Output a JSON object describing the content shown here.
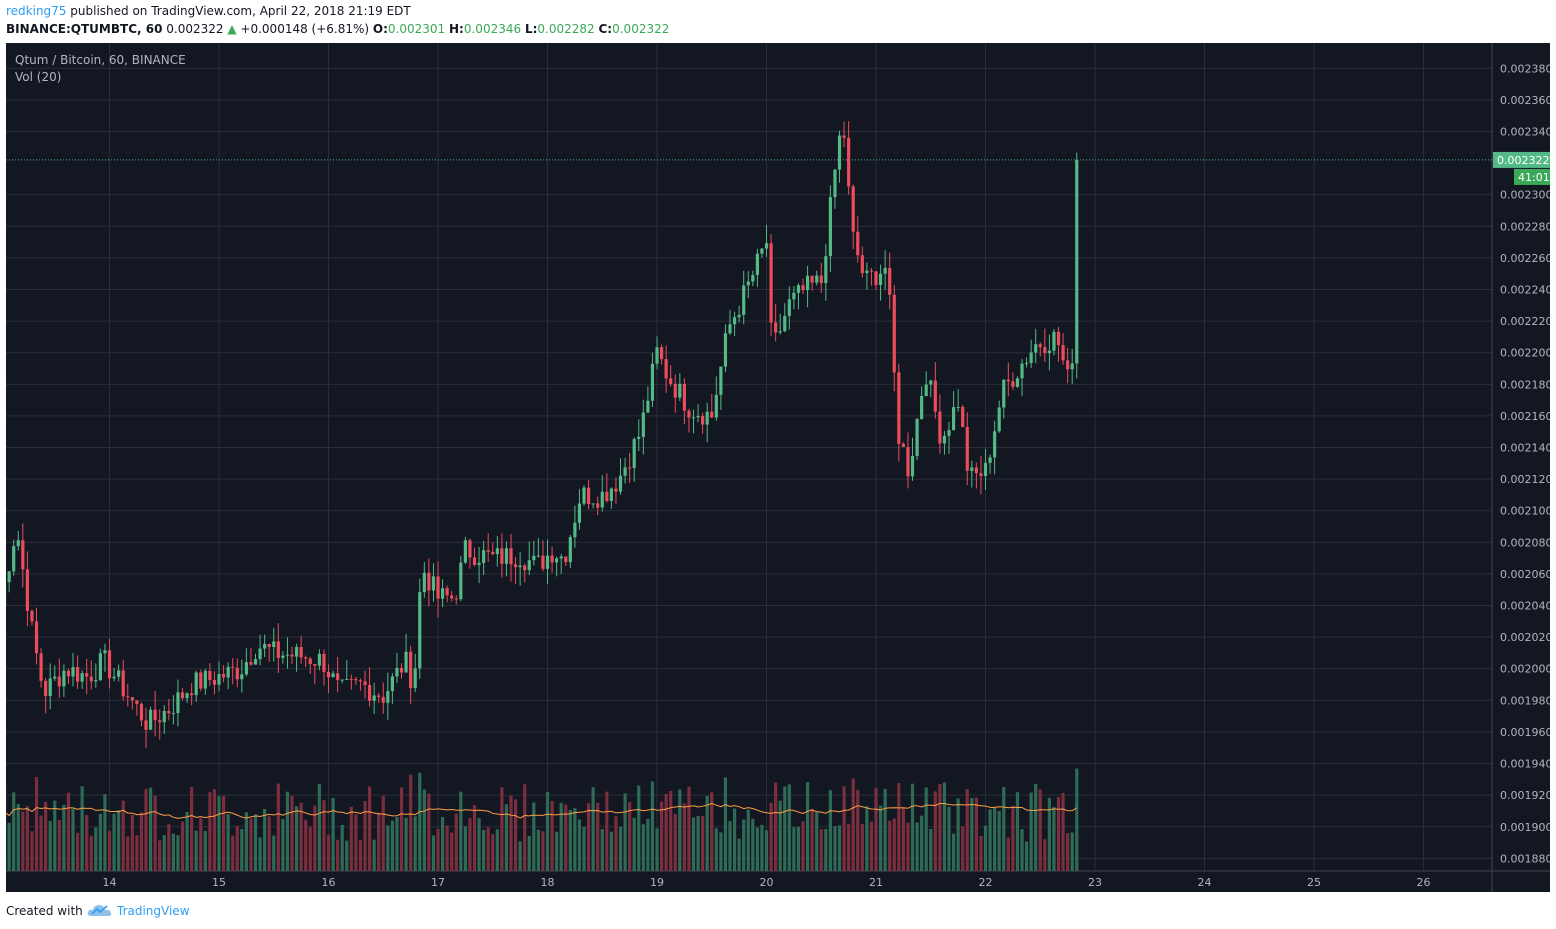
{
  "header": {
    "user": "redking75",
    "published": "published on TradingView.com, April 22, 2018 21:19 EDT",
    "symbol": "BINANCE:QTUMBTC, 60",
    "last": "0.002322",
    "change_arrow": "▲",
    "change": "+0.000148 (+6.81%)",
    "o_label": "O:",
    "o": "0.002301",
    "h_label": "H:",
    "h": "0.002346",
    "l_label": "L:",
    "l": "0.002282",
    "c_label": "C:",
    "c": "0.002322"
  },
  "legend": {
    "title": "Qtum / Bitcoin, 60, BINANCE",
    "vol": "Vol (20)"
  },
  "footer": {
    "created": "Created with",
    "brand": "TradingView",
    "logo_icon": "tradingview-cloud-icon"
  },
  "colors": {
    "background": "#131722",
    "grid": "#2a2e39",
    "up": "#53b987",
    "down": "#eb4d5c",
    "vol_up": "#2e6b57",
    "vol_down": "#7b2e3d",
    "ma": "#ff9f43",
    "last_price": "#53b987"
  },
  "chart_data": {
    "type": "candlestick",
    "title": "Qtum / Bitcoin, 60, BINANCE",
    "ylim": [
      0.001872,
      0.002396
    ],
    "yticks": [
      "0.002380",
      "0.002360",
      "0.002340",
      "0.002300",
      "0.002280",
      "0.002260",
      "0.002240",
      "0.002220",
      "0.002200",
      "0.002180",
      "0.002160",
      "0.002140",
      "0.002120",
      "0.002100",
      "0.002080",
      "0.002060",
      "0.002040",
      "0.002020",
      "0.002000",
      "0.001980",
      "0.001960",
      "0.001940",
      "0.001920",
      "0.001900",
      "0.001880"
    ],
    "xticks": [
      "14",
      "15",
      "16",
      "17",
      "18",
      "19",
      "20",
      "21",
      "22",
      "23",
      "24",
      "25",
      "26"
    ],
    "last_price_label": "0.002322",
    "countdown": "41:01",
    "anchors": [
      [
        "13.0",
        0.00204
      ],
      [
        "13.15",
        0.00209
      ],
      [
        "13.3",
        0.00202
      ],
      [
        "13.4",
        0.001985
      ],
      [
        "13.6",
        0.002
      ],
      [
        "13.8",
        0.001995
      ],
      [
        "13.95",
        0.002005
      ],
      [
        "14.15",
        0.001985
      ],
      [
        "14.35",
        0.001965
      ],
      [
        "14.55",
        0.001975
      ],
      [
        "14.75",
        0.00199
      ],
      [
        "15.0",
        0.001995
      ],
      [
        "15.2",
        0.002
      ],
      [
        "15.35",
        0.002015
      ],
      [
        "15.5",
        0.00201
      ],
      [
        "15.75",
        0.002008
      ],
      [
        "15.95",
        0.002005
      ],
      [
        "16.1",
        0.001985
      ],
      [
        "16.3",
        0.00199
      ],
      [
        "16.5",
        0.001983
      ],
      [
        "16.7",
        0.002005
      ],
      [
        "16.78",
        0.00199
      ],
      [
        "16.85",
        0.002065
      ],
      [
        "17.0",
        0.002045
      ],
      [
        "17.15",
        0.002045
      ],
      [
        "17.25",
        0.002075
      ],
      [
        "17.5",
        0.00207
      ],
      [
        "17.75",
        0.002072
      ],
      [
        "17.9",
        0.002065
      ],
      [
        "18.05",
        0.002075
      ],
      [
        "18.15",
        0.00207
      ],
      [
        "18.3",
        0.00211
      ],
      [
        "18.5",
        0.00211
      ],
      [
        "18.65",
        0.00212
      ],
      [
        "18.85",
        0.00215
      ],
      [
        "19.0",
        0.0022
      ],
      [
        "19.1",
        0.002185
      ],
      [
        "19.3",
        0.002165
      ],
      [
        "19.5",
        0.00216
      ],
      [
        "19.65",
        0.002215
      ],
      [
        "19.85",
        0.002245
      ],
      [
        "20.0",
        0.00227
      ],
      [
        "20.05",
        0.0022
      ],
      [
        "20.2",
        0.00223
      ],
      [
        "20.35",
        0.00224
      ],
      [
        "20.5",
        0.002245
      ],
      [
        "20.6",
        0.0023
      ],
      [
        "20.65",
        0.00233
      ],
      [
        "20.7",
        0.002345
      ],
      [
        "20.78",
        0.002275
      ],
      [
        "20.9",
        0.002245
      ],
      [
        "21.0",
        0.00225
      ],
      [
        "21.1",
        0.002255
      ],
      [
        "21.2",
        0.00215
      ],
      [
        "21.3",
        0.002125
      ],
      [
        "21.45",
        0.00219
      ],
      [
        "21.6",
        0.002145
      ],
      [
        "21.75",
        0.00217
      ],
      [
        "21.85",
        0.00212
      ],
      [
        "22.0",
        0.002125
      ],
      [
        "22.15",
        0.002175
      ],
      [
        "22.3",
        0.00219
      ],
      [
        "22.45",
        0.002205
      ],
      [
        "22.65",
        0.00221
      ],
      [
        "22.78",
        0.002175
      ],
      [
        "22.85",
        0.002322
      ]
    ],
    "volume_ma_label": "Vol (20)"
  }
}
